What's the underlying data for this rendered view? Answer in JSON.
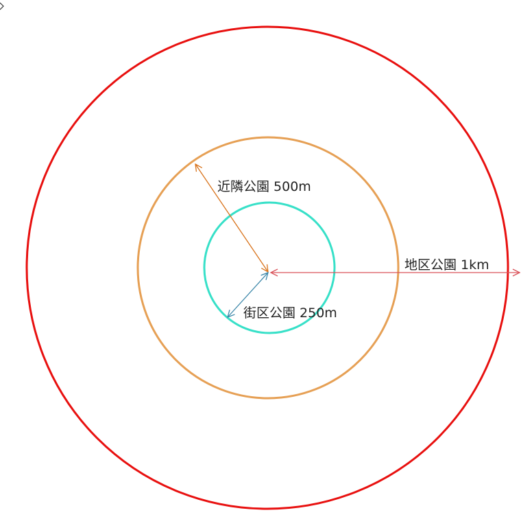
{
  "labels": {
    "district": "地区公園 1km",
    "neighborhood": "近隣公園 500m",
    "block": "街区公園 250m"
  },
  "circles": [
    {
      "name": "district-park-radius-circle",
      "radius_km": 1.0,
      "color": "#e8100f"
    },
    {
      "name": "neighborhood-park-radius-circle",
      "radius_km": 0.5,
      "color": "#e6a055"
    },
    {
      "name": "block-park-radius-circle",
      "radius_km": 0.25,
      "color": "#37e0c8"
    }
  ],
  "arrows": {
    "district": {
      "color": "#d9535a"
    },
    "neighborhood": {
      "color": "#d8721a"
    },
    "block": {
      "color": "#3a86a8"
    }
  }
}
